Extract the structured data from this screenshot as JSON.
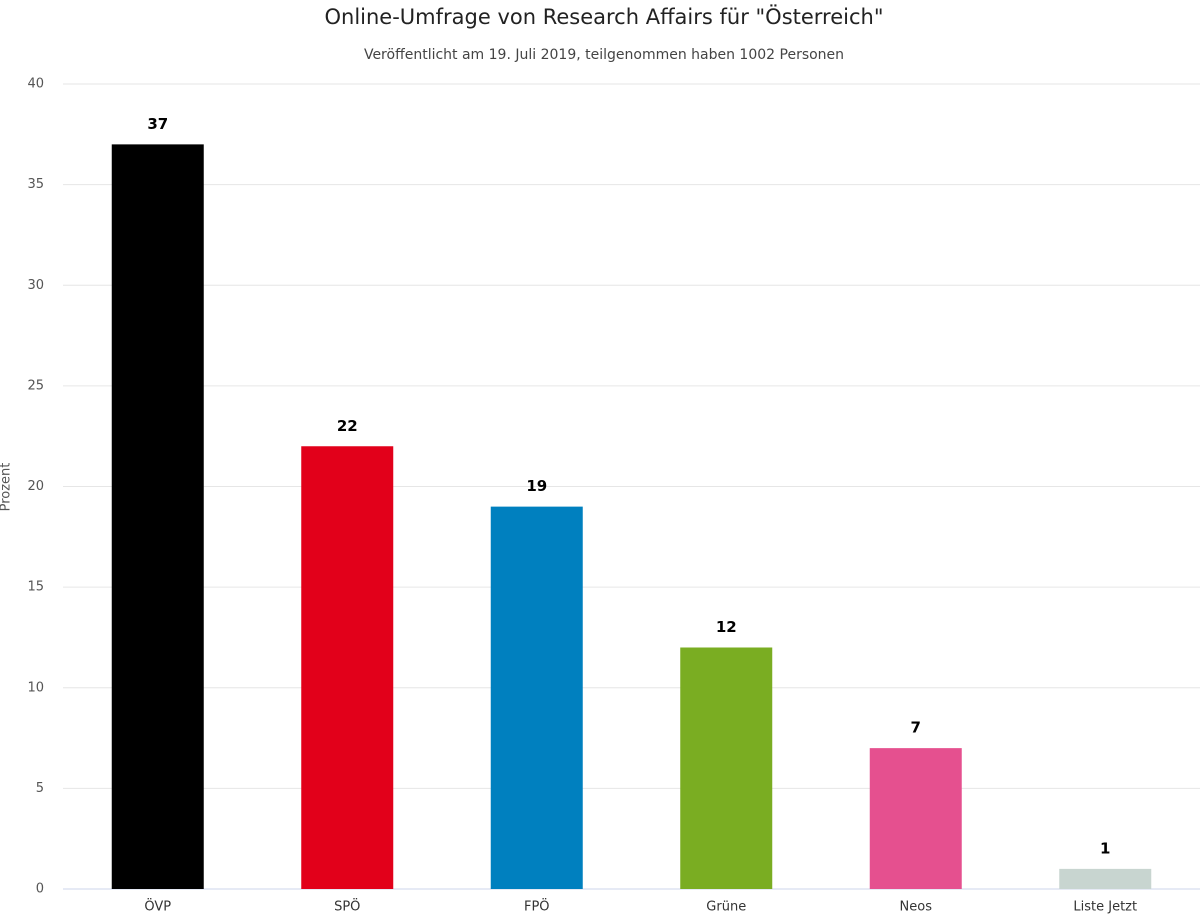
{
  "chart_data": {
    "type": "bar",
    "title": "Online-Umfrage von Research Affairs für \"Österreich\"",
    "subtitle": "Veröffentlicht am 19. Juli 2019, teilgenommen haben 1002 Personen",
    "y_label": "Prozent",
    "categories": [
      "ÖVP",
      "SPÖ",
      "FPÖ",
      "Grüne",
      "Neos",
      "Liste Jetzt"
    ],
    "values": [
      37,
      22,
      19,
      12,
      7,
      1
    ],
    "colors": [
      "#000000",
      "#e2001a",
      "#0080bf",
      "#7aad22",
      "#e5508f",
      "#c8d5d0"
    ],
    "ylim": [
      0,
      40
    ],
    "yticks": [
      0,
      5,
      10,
      15,
      20,
      25,
      30,
      35,
      40
    ],
    "grid": true
  }
}
